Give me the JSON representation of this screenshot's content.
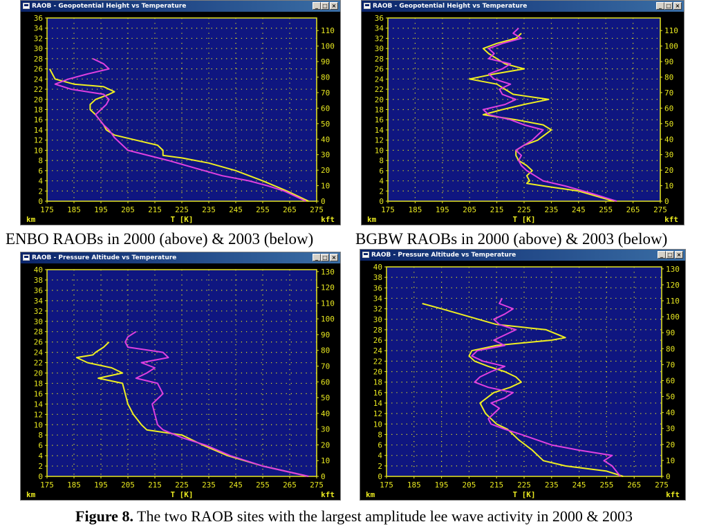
{
  "captions": {
    "left": "ENBO RAOBs in 2000 (above) & 2003 (below)",
    "right": "BGBW RAOBs in 2000 (above) & 2003 (below)",
    "figure_label": "Figure 8.",
    "figure_text": " The two RAOB sites with the largest amplitude lee wave activity in 2000 & 2003"
  },
  "window_buttons": {
    "minimize": "_",
    "maximize": "□",
    "close": "×"
  },
  "colors": {
    "plot_bg": "#0f1680",
    "axis": "#e8e820",
    "grid": "#e8e820",
    "yellow_series": "#f0f020",
    "magenta_series": "#e040e0",
    "frame": "#000000"
  },
  "chart_data": [
    {
      "type": "line",
      "title": "RAOB - Geopotential Height vs Temperature",
      "xlabel": "T [K]",
      "ylabel": "km",
      "y2label": "kft",
      "xlim": [
        175,
        275
      ],
      "ylim": [
        0,
        36
      ],
      "x_ticks": [
        "175",
        "185",
        "195",
        "205",
        "215",
        "225",
        "235",
        "245",
        "255",
        "265",
        "275"
      ],
      "y_ticks": [
        "0",
        "2",
        "4",
        "6",
        "8",
        "10",
        "12",
        "14",
        "16",
        "18",
        "20",
        "22",
        "24",
        "26",
        "28",
        "30",
        "32",
        "34",
        "36"
      ],
      "y2_ticks": [
        "0",
        "10",
        "20",
        "30",
        "40",
        "50",
        "60",
        "70",
        "80",
        "90",
        "100",
        "110"
      ],
      "grid": true,
      "series": [
        {
          "color": "yellow",
          "points": [
            [
              272,
              0
            ],
            [
              264,
              2
            ],
            [
              255,
              4
            ],
            [
              245,
              6
            ],
            [
              235,
              7.5
            ],
            [
              225,
              8.5
            ],
            [
              218,
              9
            ],
            [
              218,
              10
            ],
            [
              216,
              11
            ],
            [
              208,
              12
            ],
            [
              200,
              13
            ],
            [
              197,
              14
            ],
            [
              196,
              15
            ],
            [
              193,
              17
            ],
            [
              191,
              18
            ],
            [
              191,
              19
            ],
            [
              193,
              20
            ],
            [
              198,
              21
            ],
            [
              200,
              21.5
            ],
            [
              196,
              22.5
            ],
            [
              185,
              23
            ],
            [
              178,
              24
            ],
            [
              177,
              25
            ],
            [
              176,
              26
            ]
          ]
        },
        {
          "color": "magenta",
          "points": [
            [
              271,
              0
            ],
            [
              263,
              2
            ],
            [
              257,
              3
            ],
            [
              250,
              4
            ],
            [
              240,
              5
            ],
            [
              230,
              6.5
            ],
            [
              220,
              8
            ],
            [
              205,
              10
            ],
            [
              203,
              11
            ],
            [
              200,
              12.5
            ],
            [
              198,
              14
            ],
            [
              196,
              15
            ],
            [
              193,
              17
            ],
            [
              195,
              18
            ],
            [
              197,
              19
            ],
            [
              198,
              20
            ],
            [
              196,
              21
            ],
            [
              184,
              22
            ],
            [
              178,
              23
            ],
            [
              183,
              24
            ],
            [
              190,
              25
            ],
            [
              198,
              26
            ],
            [
              196,
              27
            ],
            [
              192,
              28
            ]
          ]
        }
      ]
    },
    {
      "type": "line",
      "title": "RAOB - Geopotential Height vs Temperature",
      "xlabel": "T [K]",
      "ylabel": "km",
      "y2label": "kft",
      "xlim": [
        175,
        275
      ],
      "ylim": [
        0,
        36
      ],
      "x_ticks": [
        "175",
        "185",
        "195",
        "205",
        "215",
        "225",
        "235",
        "245",
        "255",
        "265",
        "275"
      ],
      "y_ticks": [
        "0",
        "2",
        "4",
        "6",
        "8",
        "10",
        "12",
        "14",
        "16",
        "18",
        "20",
        "22",
        "24",
        "26",
        "28",
        "30",
        "32",
        "34",
        "36"
      ],
      "y2_ticks": [
        "0",
        "10",
        "20",
        "30",
        "40",
        "50",
        "60",
        "70",
        "80",
        "90",
        "100",
        "110"
      ],
      "grid": true,
      "series": [
        {
          "color": "yellow",
          "points": [
            [
              258,
              0
            ],
            [
              245,
              2
            ],
            [
              232,
              3
            ],
            [
              226,
              3.5
            ],
            [
              227,
              4
            ],
            [
              226,
              5
            ],
            [
              228,
              6
            ],
            [
              226,
              7
            ],
            [
              223,
              8
            ],
            [
              222,
              9
            ],
            [
              222,
              10
            ],
            [
              225,
              11
            ],
            [
              230,
              12
            ],
            [
              235,
              14
            ],
            [
              232,
              15
            ],
            [
              222,
              16
            ],
            [
              210,
              17
            ],
            [
              217,
              18
            ],
            [
              225,
              19
            ],
            [
              234,
              20
            ],
            [
              221,
              21
            ],
            [
              218,
              22
            ],
            [
              215,
              23
            ],
            [
              205,
              24
            ],
            [
              214,
              25
            ],
            [
              225,
              26
            ],
            [
              218,
              27
            ],
            [
              215,
              28
            ],
            [
              212,
              29
            ],
            [
              210,
              30
            ],
            [
              215,
              31
            ],
            [
              222,
              32
            ],
            [
              224,
              33
            ]
          ]
        },
        {
          "color": "magenta",
          "points": [
            [
              259,
              0
            ],
            [
              250,
              1.5
            ],
            [
              240,
              3
            ],
            [
              232,
              4
            ],
            [
              229,
              5
            ],
            [
              226,
              6
            ],
            [
              224,
              7
            ],
            [
              223,
              8
            ],
            [
              224,
              9
            ],
            [
              222,
              10
            ],
            [
              225,
              11
            ],
            [
              228,
              12
            ],
            [
              232,
              14
            ],
            [
              225,
              15
            ],
            [
              220,
              16
            ],
            [
              212,
              17
            ],
            [
              210,
              18
            ],
            [
              218,
              19
            ],
            [
              222,
              20
            ],
            [
              217,
              21
            ],
            [
              216,
              22
            ],
            [
              220,
              23
            ],
            [
              214,
              24
            ],
            [
              212,
              25
            ],
            [
              217,
              26
            ],
            [
              220,
              27
            ],
            [
              212,
              28
            ],
            [
              214,
              29
            ],
            [
              212,
              30
            ],
            [
              217,
              31
            ],
            [
              224,
              32
            ],
            [
              221,
              33
            ],
            [
              223,
              34
            ]
          ]
        }
      ]
    },
    {
      "type": "line",
      "title": "RAOB - Pressure Altitude vs Temperature",
      "xlabel": "T [K]",
      "ylabel": "km",
      "y2label": "kft",
      "xlim": [
        175,
        275
      ],
      "ylim": [
        0,
        40
      ],
      "x_ticks": [
        "175",
        "185",
        "195",
        "205",
        "215",
        "225",
        "235",
        "245",
        "255",
        "265",
        "275"
      ],
      "y_ticks": [
        "0",
        "2",
        "4",
        "6",
        "8",
        "10",
        "12",
        "14",
        "16",
        "18",
        "20",
        "22",
        "24",
        "26",
        "28",
        "30",
        "32",
        "34",
        "36",
        "38",
        "40"
      ],
      "y2_ticks": [
        "0",
        "10",
        "20",
        "30",
        "40",
        "50",
        "60",
        "70",
        "80",
        "90",
        "100",
        "110",
        "120",
        "130"
      ],
      "grid": true,
      "series": [
        {
          "color": "yellow",
          "points": [
            [
              272,
              0
            ],
            [
              255,
              2
            ],
            [
              242,
              4
            ],
            [
              233,
              6
            ],
            [
              225,
              8
            ],
            [
              212,
              9
            ],
            [
              210,
              10
            ],
            [
              207,
              12
            ],
            [
              205,
              14
            ],
            [
              204,
              16
            ],
            [
              203,
              18
            ],
            [
              194,
              19
            ],
            [
              203,
              20
            ],
            [
              199,
              21
            ],
            [
              190,
              22
            ],
            [
              186,
              23
            ],
            [
              192,
              23.5
            ],
            [
              193,
              24
            ],
            [
              196,
              25
            ],
            [
              198,
              26
            ]
          ]
        },
        {
          "color": "magenta",
          "points": [
            [
              272,
              0
            ],
            [
              255,
              2
            ],
            [
              243,
              4
            ],
            [
              234,
              6
            ],
            [
              225,
              7.5
            ],
            [
              218,
              9
            ],
            [
              216,
              10
            ],
            [
              215,
              12
            ],
            [
              214,
              14
            ],
            [
              218,
              16
            ],
            [
              216,
              18
            ],
            [
              208,
              19
            ],
            [
              212,
              20
            ],
            [
              215,
              21
            ],
            [
              210,
              22
            ],
            [
              220,
              23
            ],
            [
              218,
              24
            ],
            [
              205,
              25
            ],
            [
              204,
              26
            ],
            [
              205,
              27
            ],
            [
              208,
              28
            ]
          ]
        }
      ]
    },
    {
      "type": "line",
      "title": "RAOB - Pressure Altitude vs Temperature",
      "xlabel": "T [K]",
      "ylabel": "km",
      "y2label": "kft",
      "xlim": [
        175,
        275
      ],
      "ylim": [
        0,
        40
      ],
      "x_ticks": [
        "175",
        "185",
        "195",
        "205",
        "215",
        "225",
        "235",
        "245",
        "255",
        "265",
        "275"
      ],
      "y_ticks": [
        "0",
        "2",
        "4",
        "6",
        "8",
        "10",
        "12",
        "14",
        "16",
        "18",
        "20",
        "22",
        "24",
        "26",
        "28",
        "30",
        "32",
        "34",
        "36",
        "38",
        "40"
      ],
      "y2_ticks": [
        "0",
        "10",
        "20",
        "30",
        "40",
        "50",
        "60",
        "70",
        "80",
        "90",
        "100",
        "110",
        "120",
        "130"
      ],
      "grid": true,
      "series": [
        {
          "color": "yellow",
          "points": [
            [
              261,
              0
            ],
            [
              255,
              1
            ],
            [
              240,
              2
            ],
            [
              232,
              3
            ],
            [
              228,
              5
            ],
            [
              223,
              7
            ],
            [
              219,
              9
            ],
            [
              215,
              10
            ],
            [
              213,
              11
            ],
            [
              211,
              12
            ],
            [
              209,
              14
            ],
            [
              214,
              16
            ],
            [
              220,
              17
            ],
            [
              224,
              18
            ],
            [
              222,
              19
            ],
            [
              218,
              20
            ],
            [
              212,
              21
            ],
            [
              207,
              22
            ],
            [
              205,
              23
            ],
            [
              206,
              24
            ],
            [
              215,
              25
            ],
            [
              225,
              25.5
            ],
            [
              235,
              26
            ],
            [
              240,
              26.5
            ],
            [
              233,
              28
            ],
            [
              215,
              29
            ],
            [
              195,
              32
            ],
            [
              188,
              33
            ]
          ]
        },
        {
          "color": "magenta",
          "points": [
            [
              260,
              0
            ],
            [
              257,
              2
            ],
            [
              254,
              3
            ],
            [
              257,
              4
            ],
            [
              245,
              5
            ],
            [
              235,
              6
            ],
            [
              224,
              8
            ],
            [
              218,
              9
            ],
            [
              213,
              10
            ],
            [
              212,
              11
            ],
            [
              214,
              12
            ],
            [
              216,
              13
            ],
            [
              213,
              14
            ],
            [
              218,
              15
            ],
            [
              221,
              16
            ],
            [
              212,
              17
            ],
            [
              207,
              18
            ],
            [
              209,
              19
            ],
            [
              213,
              20
            ],
            [
              218,
              21
            ],
            [
              210,
              22
            ],
            [
              206,
              23
            ],
            [
              208,
              24
            ],
            [
              218,
              25
            ],
            [
              214,
              26
            ],
            [
              218,
              27
            ],
            [
              222,
              28
            ],
            [
              216,
              29
            ],
            [
              214,
              30
            ],
            [
              218,
              31
            ],
            [
              221,
              32
            ],
            [
              216,
              33
            ],
            [
              217,
              34
            ]
          ]
        }
      ]
    }
  ]
}
